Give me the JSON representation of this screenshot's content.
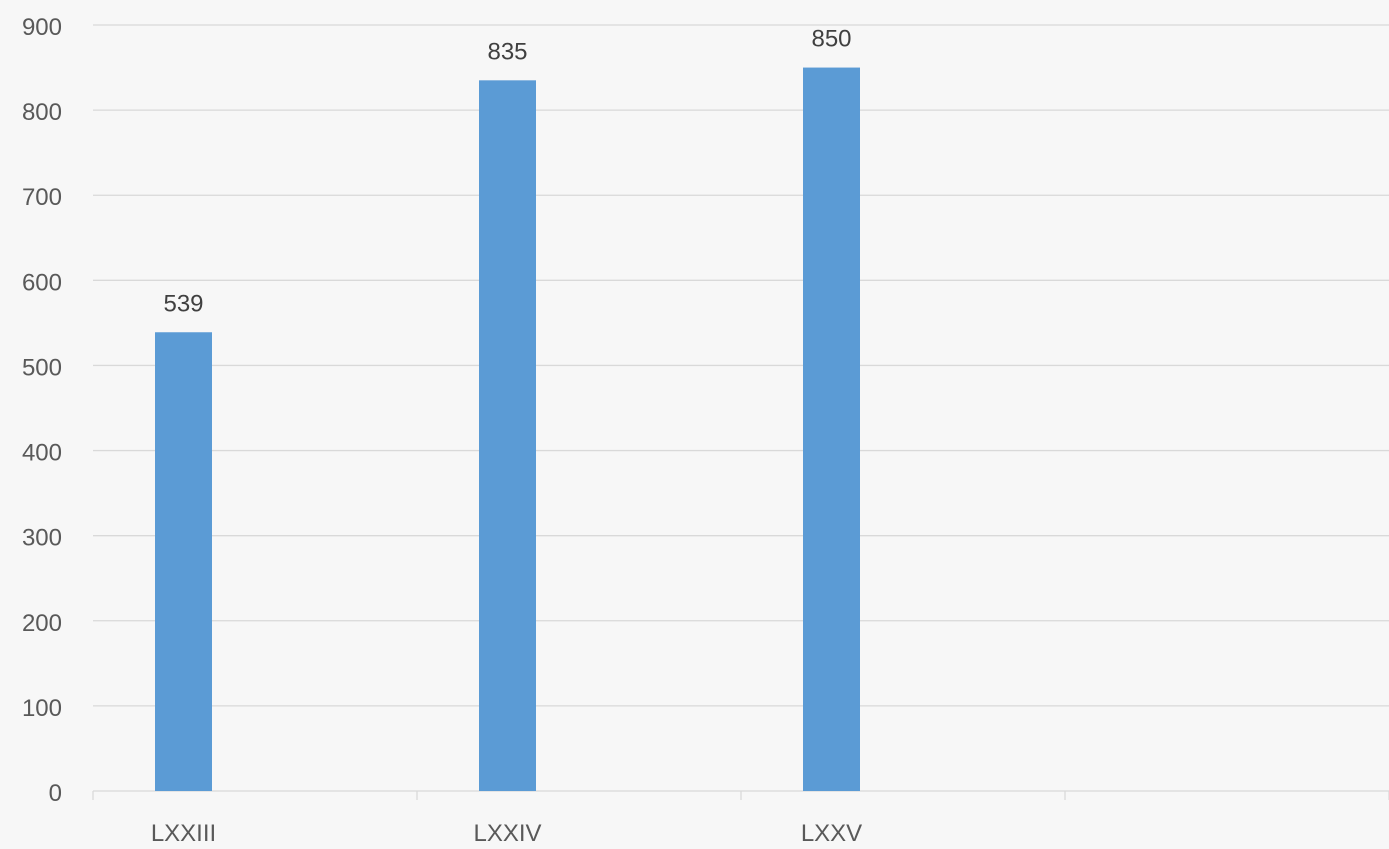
{
  "colors": {
    "background": "#f7f7f7",
    "bar": "#5b9bd5",
    "gridline": "#d9d9d9",
    "axis": "#d9d9d9",
    "tick_text": "#595959",
    "data_label_text": "#404040"
  },
  "chart_data": {
    "type": "bar",
    "title": "",
    "xlabel": "",
    "ylabel": "",
    "categories": [
      "LXXIII",
      "LXXIV",
      "LXXV",
      ""
    ],
    "values": [
      539,
      835,
      850,
      null
    ],
    "data_labels": [
      "539",
      "835",
      "850",
      ""
    ],
    "ylim": [
      0,
      900
    ],
    "y_ticks": [
      0,
      100,
      200,
      300,
      400,
      500,
      600,
      700,
      800,
      900
    ],
    "grid": true,
    "legend": "none"
  }
}
